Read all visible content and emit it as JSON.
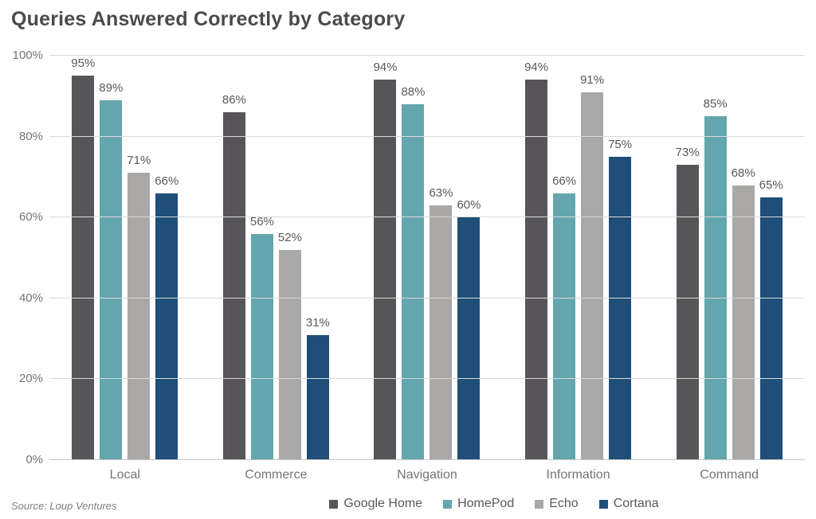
{
  "title": "Queries Answered Correctly by Category",
  "source": "Source: Loup Ventures",
  "chart_data": {
    "type": "bar",
    "title": "Queries Answered Correctly by Category",
    "categories": [
      "Local",
      "Commerce",
      "Navigation",
      "Information",
      "Command"
    ],
    "series": [
      {
        "name": "Google Home",
        "color": "#58555A",
        "values": [
          95,
          86,
          94,
          94,
          73
        ]
      },
      {
        "name": "HomePod",
        "color": "#64A6AD",
        "values": [
          89,
          56,
          88,
          66,
          85
        ]
      },
      {
        "name": "Echo",
        "color": "#A9A8A6",
        "values": [
          71,
          52,
          63,
          91,
          68
        ]
      },
      {
        "name": "Cortana",
        "color": "#1F4E78",
        "values": [
          66,
          31,
          60,
          75,
          65
        ]
      }
    ],
    "value_suffix": "%",
    "ylabel": "",
    "xlabel": "",
    "ylim": [
      0,
      100
    ],
    "yticks": [
      0,
      20,
      40,
      60,
      80,
      100
    ],
    "ytick_labels": [
      "0%",
      "20%",
      "40%",
      "60%",
      "80%",
      "100%"
    ],
    "grid": true,
    "legend_position": "bottom"
  },
  "colors": {
    "title_text": "#4a4a4a",
    "axis_text": "#757575",
    "value_label_text": "#595959",
    "gridline": "#d9d9d9",
    "background": "#ffffff"
  }
}
